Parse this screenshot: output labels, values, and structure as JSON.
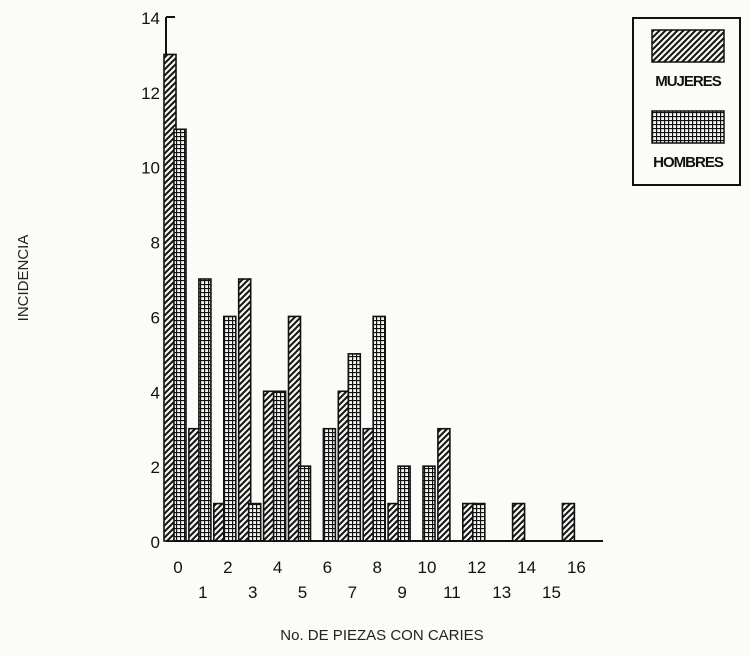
{
  "chart_data": {
    "type": "bar",
    "title": "",
    "xlabel": "No. DE PIEZAS CON CARIES",
    "ylabel": "INCIDENCIA",
    "ylim": [
      0,
      14
    ],
    "yticks": [
      "0",
      "2",
      "4",
      "6",
      "8",
      "10",
      "12",
      "14"
    ],
    "categories": [
      "0",
      "1",
      "2",
      "3",
      "4",
      "5",
      "6",
      "7",
      "8",
      "9",
      "10",
      "11",
      "12",
      "13",
      "14",
      "15",
      "16"
    ],
    "series": [
      {
        "name": "MUJERES",
        "values": [
          13,
          3,
          1,
          7,
          4,
          6,
          0,
          4,
          3,
          1,
          0,
          3,
          1,
          0,
          1,
          0,
          1
        ]
      },
      {
        "name": "HOMBRES",
        "values": [
          11,
          7,
          6,
          1,
          4,
          2,
          3,
          5,
          6,
          2,
          2,
          0,
          1,
          0,
          0,
          0,
          0
        ]
      }
    ],
    "legend_position": "top-right",
    "grid": false
  }
}
